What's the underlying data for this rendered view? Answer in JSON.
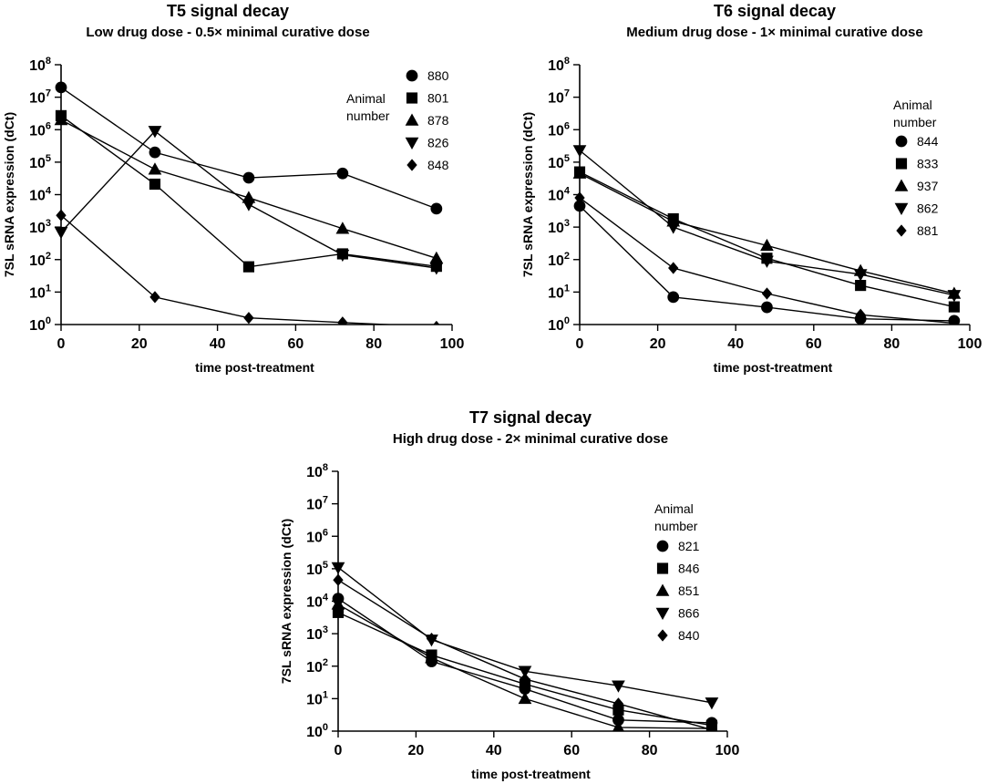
{
  "chart_data": [
    {
      "type": "line",
      "title": "T5 signal decay",
      "subtitle": "Low drug dose - 0.5× minimal curative dose",
      "xlabel": "time post-treatment",
      "ylabel": "7SL sRNA expression (dCt)",
      "xlim": [
        0,
        100
      ],
      "ylim_log10": [
        0,
        8
      ],
      "xticks": [
        0,
        20,
        40,
        60,
        80,
        100
      ],
      "yticks_exp": [
        0,
        1,
        2,
        3,
        4,
        5,
        6,
        7,
        8
      ],
      "ytick_base": "10",
      "legend_title": [
        "Animal",
        "number"
      ],
      "legend_title_position": "left",
      "x": [
        0,
        24,
        48,
        72,
        96
      ],
      "series": [
        {
          "name": "880",
          "marker": "circle",
          "values": [
            20000000,
            200000,
            33000,
            45000,
            3700
          ]
        },
        {
          "name": "801",
          "marker": "square",
          "values": [
            2700000,
            21000,
            60,
            150,
            62
          ]
        },
        {
          "name": "878",
          "marker": "triangle-up",
          "values": [
            2000000,
            60000,
            8000,
            900,
            110
          ]
        },
        {
          "name": "826",
          "marker": "triangle-down",
          "values": [
            700,
            900000,
            5000,
            140,
            55
          ]
        },
        {
          "name": "848",
          "marker": "diamond",
          "values": [
            2300,
            7,
            1.6,
            1.15,
            0.85
          ]
        }
      ]
    },
    {
      "type": "line",
      "title": "T6 signal decay",
      "subtitle": "Medium drug dose - 1× minimal curative dose",
      "xlabel": "time post-treatment",
      "ylabel": "7SL sRNA expression (dCt)",
      "xlim": [
        0,
        100
      ],
      "ylim_log10": [
        0,
        8
      ],
      "xticks": [
        0,
        20,
        40,
        60,
        80,
        100
      ],
      "yticks_exp": [
        0,
        1,
        2,
        3,
        4,
        5,
        6,
        7,
        8
      ],
      "ytick_base": "10",
      "legend_title": [
        "Animal",
        "number"
      ],
      "legend_title_position": "top",
      "x": [
        0,
        24,
        48,
        72,
        96
      ],
      "series": [
        {
          "name": "844",
          "marker": "circle",
          "values": [
            4500,
            7,
            3.4,
            1.5,
            1.3
          ]
        },
        {
          "name": "833",
          "marker": "square",
          "values": [
            50000,
            1800,
            110,
            16,
            3.5
          ]
        },
        {
          "name": "937",
          "marker": "triangle-up",
          "values": [
            45000,
            1500,
            270,
            45,
            9
          ]
        },
        {
          "name": "862",
          "marker": "triangle-down",
          "values": [
            230000,
            1000,
            90,
            35,
            8
          ]
        },
        {
          "name": "881",
          "marker": "diamond",
          "values": [
            8000,
            55,
            9,
            2,
            1.1
          ]
        }
      ]
    },
    {
      "type": "line",
      "title": "T7 signal decay",
      "subtitle": "High drug dose - 2× minimal curative dose",
      "xlabel": "time post-treatment",
      "ylabel": "7SL sRNA expression (dCt)",
      "xlim": [
        0,
        100
      ],
      "ylim_log10": [
        0,
        8
      ],
      "xticks": [
        0,
        20,
        40,
        60,
        80,
        100
      ],
      "yticks_exp": [
        0,
        1,
        2,
        3,
        4,
        5,
        6,
        7,
        8
      ],
      "ytick_base": "10",
      "legend_title": [
        "Animal",
        "number"
      ],
      "legend_title_position": "top",
      "x": [
        0,
        24,
        48,
        72,
        96
      ],
      "series": [
        {
          "name": "821",
          "marker": "circle",
          "values": [
            12000,
            140,
            20,
            2.2,
            1.8
          ]
        },
        {
          "name": "846",
          "marker": "square",
          "values": [
            4500,
            220,
            28,
            4.5,
            1.5
          ]
        },
        {
          "name": "851",
          "marker": "triangle-up",
          "values": [
            8000,
            180,
            10,
            1.3,
            1.2
          ]
        },
        {
          "name": "866",
          "marker": "triangle-down",
          "values": [
            110000,
            650,
            70,
            25,
            7.5
          ]
        },
        {
          "name": "840",
          "marker": "diamond",
          "values": [
            45000,
            700,
            40,
            7,
            1.1
          ]
        }
      ]
    }
  ]
}
